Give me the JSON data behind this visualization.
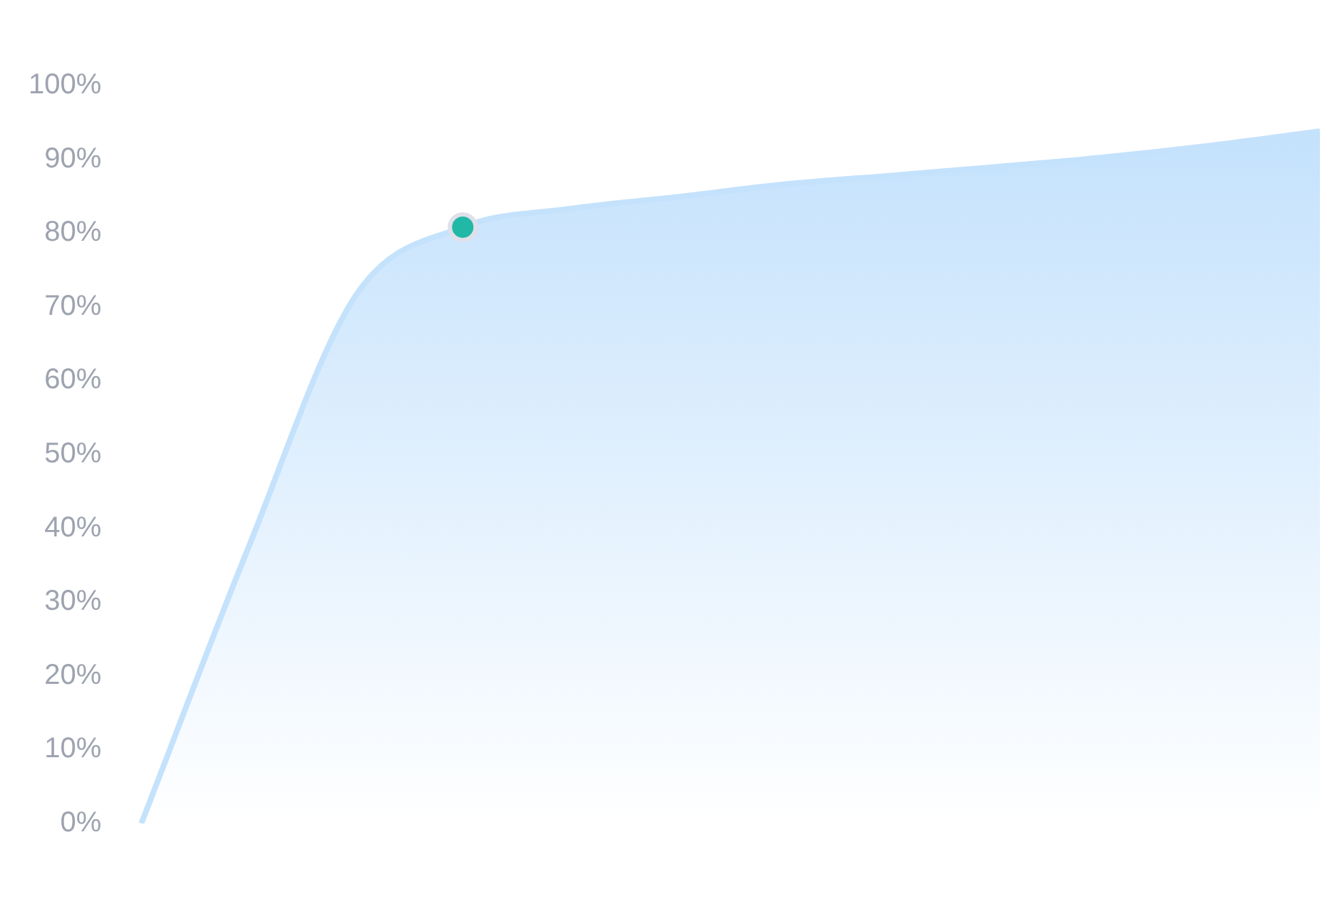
{
  "chart_data": {
    "type": "area",
    "categories": [
      null,
      null,
      null,
      null,
      null,
      null,
      null,
      null,
      null,
      null,
      null,
      null
    ],
    "series": [
      {
        "color": "#c5e2fc",
        "values": [
          0,
          37.4,
          71.5,
          80.8,
          83.3,
          84.9,
          86.6,
          87.8,
          89.0,
          90.3,
          91.9,
          93.8
        ]
      },
      {
        "type": "scatter",
        "color": "#22b8a6",
        "values": [
          null,
          null,
          null,
          80.8,
          null,
          null,
          null,
          null,
          null,
          null,
          null,
          null
        ],
        "marker": "circle"
      }
    ],
    "ylim": [
      0,
      100
    ],
    "yticks": [
      {
        "value": 0,
        "label": "0%"
      },
      {
        "value": 10,
        "label": "10%"
      },
      {
        "value": 20,
        "label": "20%"
      },
      {
        "value": 30,
        "label": "30%"
      },
      {
        "value": 40,
        "label": "40%"
      },
      {
        "value": 50,
        "label": "50%"
      },
      {
        "value": 60,
        "label": "60%"
      },
      {
        "value": 70,
        "label": "70%"
      },
      {
        "value": 80,
        "label": "80%"
      },
      {
        "value": 90,
        "label": "90%"
      },
      {
        "value": 100,
        "label": "100%"
      }
    ],
    "grid": false,
    "legend": false,
    "tick_labels": "y"
  }
}
